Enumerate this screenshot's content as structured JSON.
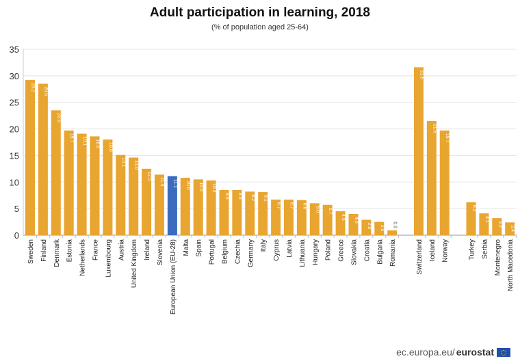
{
  "chart_data": {
    "type": "bar",
    "title": "Adult participation in learning, 2018",
    "subtitle": "(% of population aged 25-64)",
    "xlabel": "",
    "ylabel": "",
    "ylim": [
      0,
      35
    ],
    "yticks": [
      0,
      5,
      10,
      15,
      20,
      25,
      30,
      35
    ],
    "grid": true,
    "colors": {
      "default": "#e8a530",
      "highlight": "#3a6bbf"
    },
    "highlight": "European Union (EU-28)",
    "groups": [
      {
        "categories": [
          "Sweden",
          "Finland",
          "Denmark",
          "Estonia",
          "Netherlands",
          "France",
          "Luxembourg",
          "Austria",
          "United Kingdom",
          "Ireland",
          "Slovenia",
          "European Union (EU-28)",
          "Malta",
          "Spain",
          "Portugal",
          "Belgium",
          "Czechia",
          "Germany",
          "Italy",
          "Cyprus",
          "Latvia",
          "Lithuania",
          "Hungary",
          "Poland",
          "Greece",
          "Slovakia",
          "Croatia",
          "Bulgaria",
          "Romania"
        ],
        "values": [
          29.2,
          28.5,
          23.5,
          19.7,
          19.1,
          18.6,
          18.0,
          15.1,
          14.6,
          12.5,
          11.4,
          11.1,
          10.8,
          10.5,
          10.3,
          8.5,
          8.5,
          8.2,
          8.1,
          6.7,
          6.7,
          6.6,
          6.0,
          5.7,
          4.5,
          4.0,
          2.9,
          2.5,
          0.9
        ]
      },
      {
        "categories": [
          "Switzerland",
          "Iceland",
          "Norway"
        ],
        "values": [
          31.6,
          21.5,
          19.7
        ]
      },
      {
        "categories": [
          "Turkey",
          "Serbia",
          "Montenegro",
          "North Macedonia"
        ],
        "values": [
          6.2,
          4.1,
          3.2,
          2.4
        ]
      }
    ]
  },
  "footer": {
    "site": "ec.europa.eu/",
    "brand": "eurostat"
  }
}
